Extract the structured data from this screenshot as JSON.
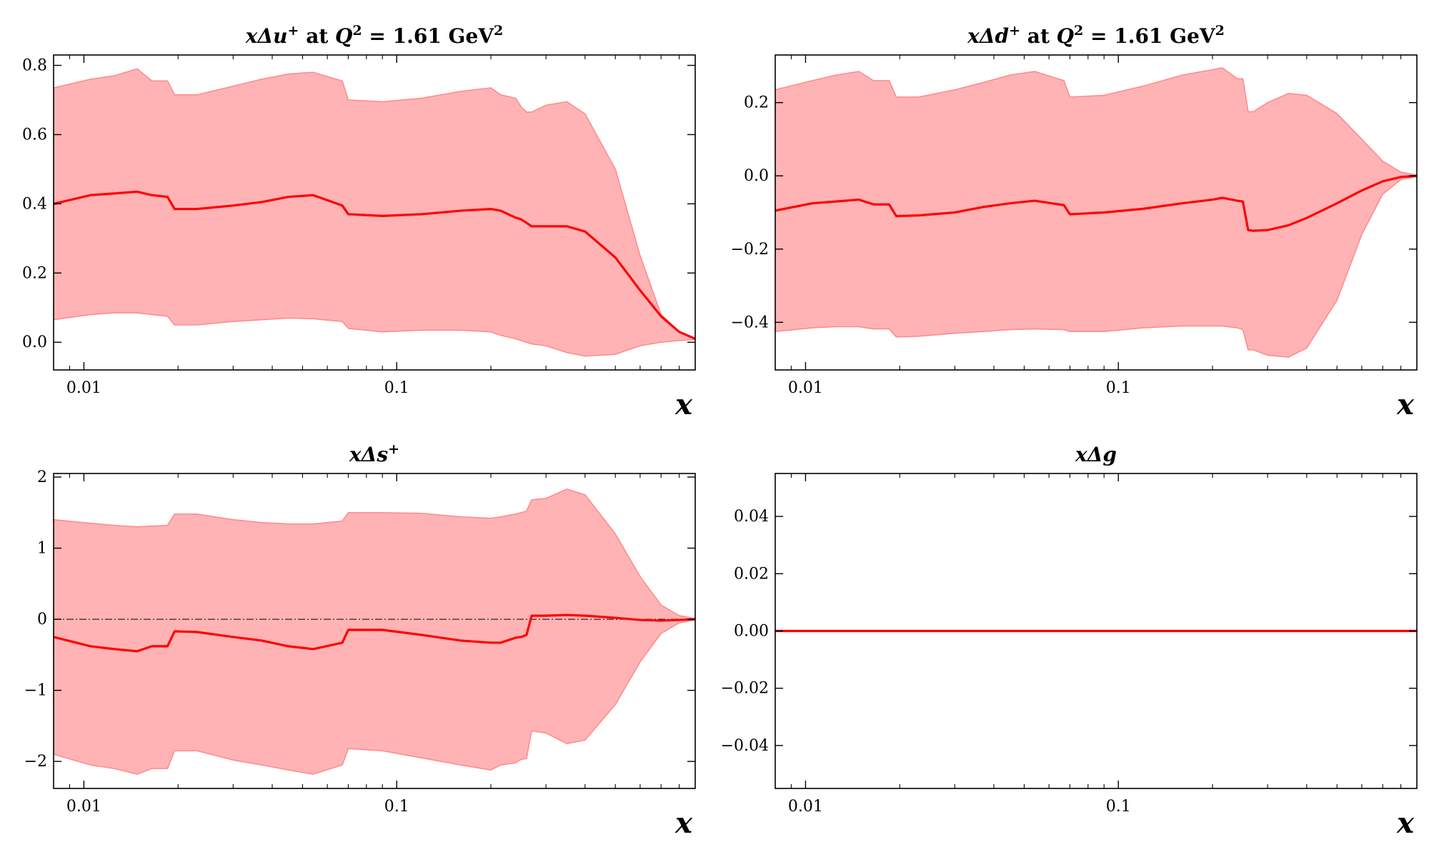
{
  "chart_data": [
    {
      "type": "area",
      "title": [
        "x",
        "Δu",
        "+",
        " at ",
        "Q",
        "2",
        " = 1.61 GeV",
        "2"
      ],
      "xlabel": "x",
      "xscale": "log",
      "xlim": [
        0.008,
        0.9
      ],
      "ylim": [
        -0.08,
        0.83
      ],
      "xticks": [
        {
          "value": 0.01,
          "label": "0.01"
        },
        {
          "value": 0.1,
          "label": "0.1"
        }
      ],
      "yticks": [
        {
          "value": 0.0,
          "label": "0.0"
        },
        {
          "value": 0.2,
          "label": "0.2"
        },
        {
          "value": 0.4,
          "label": "0.4"
        },
        {
          "value": 0.6,
          "label": "0.6"
        },
        {
          "value": 0.8,
          "label": "0.8"
        }
      ],
      "zero_line": false,
      "x": [
        0.008,
        0.0105,
        0.0125,
        0.0148,
        0.0165,
        0.0185,
        0.0195,
        0.023,
        0.03,
        0.037,
        0.045,
        0.054,
        0.067,
        0.07,
        0.09,
        0.12,
        0.16,
        0.2,
        0.215,
        0.24,
        0.25,
        0.26,
        0.27,
        0.3,
        0.35,
        0.4,
        0.5,
        0.6,
        0.7,
        0.8,
        0.9
      ],
      "central": [
        0.4,
        0.425,
        0.43,
        0.435,
        0.425,
        0.42,
        0.385,
        0.385,
        0.395,
        0.405,
        0.42,
        0.425,
        0.395,
        0.37,
        0.365,
        0.37,
        0.38,
        0.385,
        0.38,
        0.36,
        0.355,
        0.345,
        0.335,
        0.335,
        0.335,
        0.32,
        0.245,
        0.15,
        0.075,
        0.03,
        0.01
      ],
      "upper": [
        0.735,
        0.76,
        0.77,
        0.79,
        0.755,
        0.755,
        0.715,
        0.715,
        0.74,
        0.76,
        0.775,
        0.78,
        0.755,
        0.7,
        0.695,
        0.705,
        0.725,
        0.735,
        0.715,
        0.705,
        0.68,
        0.665,
        0.665,
        0.685,
        0.695,
        0.66,
        0.5,
        0.25,
        0.08,
        0.03,
        0.01
      ],
      "lower": [
        0.065,
        0.08,
        0.085,
        0.085,
        0.08,
        0.075,
        0.05,
        0.05,
        0.06,
        0.065,
        0.07,
        0.068,
        0.06,
        0.04,
        0.03,
        0.035,
        0.035,
        0.03,
        0.02,
        0.01,
        0.005,
        0.0,
        -0.005,
        -0.01,
        -0.03,
        -0.04,
        -0.035,
        -0.01,
        0.0,
        0.005,
        0.008
      ]
    },
    {
      "type": "area",
      "title": [
        "x",
        "Δd",
        "+",
        " at ",
        "Q",
        "2",
        " = 1.61 GeV",
        "2"
      ],
      "xlabel": "x",
      "xscale": "log",
      "xlim": [
        0.008,
        0.9
      ],
      "ylim": [
        -0.53,
        0.33
      ],
      "xticks": [
        {
          "value": 0.01,
          "label": "0.01"
        },
        {
          "value": 0.1,
          "label": "0.1"
        }
      ],
      "yticks": [
        {
          "value": -0.4,
          "label": "−0.4"
        },
        {
          "value": -0.2,
          "label": "−0.2"
        },
        {
          "value": 0.0,
          "label": "0.0"
        },
        {
          "value": 0.2,
          "label": "0.2"
        }
      ],
      "zero_line": false,
      "x": [
        0.008,
        0.0105,
        0.0125,
        0.0148,
        0.0165,
        0.0185,
        0.0195,
        0.023,
        0.03,
        0.037,
        0.045,
        0.054,
        0.067,
        0.07,
        0.09,
        0.12,
        0.16,
        0.2,
        0.215,
        0.24,
        0.25,
        0.26,
        0.27,
        0.3,
        0.35,
        0.4,
        0.5,
        0.6,
        0.7,
        0.8,
        0.9
      ],
      "central": [
        -0.095,
        -0.075,
        -0.07,
        -0.065,
        -0.078,
        -0.078,
        -0.11,
        -0.108,
        -0.1,
        -0.085,
        -0.075,
        -0.068,
        -0.08,
        -0.105,
        -0.1,
        -0.09,
        -0.075,
        -0.065,
        -0.06,
        -0.068,
        -0.07,
        -0.148,
        -0.15,
        -0.148,
        -0.135,
        -0.115,
        -0.075,
        -0.04,
        -0.015,
        -0.003,
        0.0
      ],
      "upper": [
        0.235,
        0.26,
        0.275,
        0.285,
        0.26,
        0.26,
        0.215,
        0.215,
        0.235,
        0.255,
        0.275,
        0.285,
        0.26,
        0.215,
        0.22,
        0.245,
        0.275,
        0.29,
        0.295,
        0.265,
        0.265,
        0.175,
        0.175,
        0.2,
        0.225,
        0.22,
        0.17,
        0.1,
        0.04,
        0.01,
        0.002
      ],
      "lower": [
        -0.425,
        -0.415,
        -0.412,
        -0.412,
        -0.418,
        -0.418,
        -0.44,
        -0.438,
        -0.43,
        -0.425,
        -0.42,
        -0.418,
        -0.42,
        -0.425,
        -0.425,
        -0.415,
        -0.41,
        -0.41,
        -0.41,
        -0.415,
        -0.42,
        -0.475,
        -0.475,
        -0.49,
        -0.495,
        -0.47,
        -0.34,
        -0.16,
        -0.05,
        -0.01,
        -0.002
      ]
    },
    {
      "type": "area",
      "title": [
        "x",
        "Δs",
        "+"
      ],
      "xlabel": "x",
      "xscale": "log",
      "xlim": [
        0.008,
        0.9
      ],
      "ylim": [
        -2.38,
        2.05
      ],
      "xticks": [
        {
          "value": 0.01,
          "label": "0.01"
        },
        {
          "value": 0.1,
          "label": "0.1"
        }
      ],
      "yticks": [
        {
          "value": -2,
          "label": "−2"
        },
        {
          "value": -1,
          "label": "−1"
        },
        {
          "value": 0,
          "label": "0"
        },
        {
          "value": 1,
          "label": "1"
        },
        {
          "value": 2,
          "label": "2"
        }
      ],
      "zero_line": true,
      "x": [
        0.008,
        0.0105,
        0.0125,
        0.0148,
        0.0165,
        0.0185,
        0.0195,
        0.023,
        0.03,
        0.037,
        0.045,
        0.054,
        0.067,
        0.07,
        0.09,
        0.12,
        0.16,
        0.2,
        0.215,
        0.24,
        0.25,
        0.26,
        0.27,
        0.3,
        0.35,
        0.4,
        0.5,
        0.6,
        0.7,
        0.8,
        0.9
      ],
      "central": [
        -0.25,
        -0.38,
        -0.42,
        -0.45,
        -0.38,
        -0.38,
        -0.17,
        -0.18,
        -0.25,
        -0.3,
        -0.38,
        -0.42,
        -0.33,
        -0.15,
        -0.15,
        -0.22,
        -0.3,
        -0.33,
        -0.33,
        -0.26,
        -0.25,
        -0.22,
        0.05,
        0.05,
        0.06,
        0.05,
        0.02,
        -0.01,
        -0.02,
        -0.01,
        0.0
      ],
      "upper": [
        1.4,
        1.35,
        1.32,
        1.3,
        1.31,
        1.32,
        1.48,
        1.48,
        1.4,
        1.36,
        1.34,
        1.34,
        1.38,
        1.5,
        1.5,
        1.49,
        1.44,
        1.42,
        1.44,
        1.48,
        1.5,
        1.52,
        1.68,
        1.7,
        1.83,
        1.75,
        1.2,
        0.6,
        0.2,
        0.05,
        0.01
      ],
      "lower": [
        -1.9,
        -2.05,
        -2.1,
        -2.18,
        -2.1,
        -2.1,
        -1.85,
        -1.85,
        -1.98,
        -2.05,
        -2.12,
        -2.18,
        -2.05,
        -1.82,
        -1.85,
        -1.95,
        -2.05,
        -2.12,
        -2.05,
        -2.02,
        -1.97,
        -1.96,
        -1.57,
        -1.6,
        -1.75,
        -1.7,
        -1.2,
        -0.6,
        -0.2,
        -0.05,
        -0.01
      ]
    },
    {
      "type": "area",
      "title": [
        "x",
        "Δg"
      ],
      "xlabel": "x",
      "xscale": "log",
      "xlim": [
        0.008,
        0.9
      ],
      "ylim": [
        -0.055,
        0.055
      ],
      "xticks": [
        {
          "value": 0.01,
          "label": "0.01"
        },
        {
          "value": 0.1,
          "label": "0.1"
        }
      ],
      "yticks": [
        {
          "value": -0.04,
          "label": "−0.04"
        },
        {
          "value": -0.02,
          "label": "−0.02"
        },
        {
          "value": 0.0,
          "label": "0.00"
        },
        {
          "value": 0.02,
          "label": "0.02"
        },
        {
          "value": 0.04,
          "label": "0.04"
        }
      ],
      "zero_line": true,
      "x": [
        0.008,
        0.9
      ],
      "central": [
        0.0,
        0.0
      ],
      "upper": [
        0.0,
        0.0
      ],
      "lower": [
        0.0,
        0.0
      ]
    }
  ],
  "colors": {
    "band": "#ffb3b5",
    "band_edge": "#ff8c8c",
    "central": "#ff0000",
    "zero_line": "#000000",
    "axes": "#000000"
  }
}
